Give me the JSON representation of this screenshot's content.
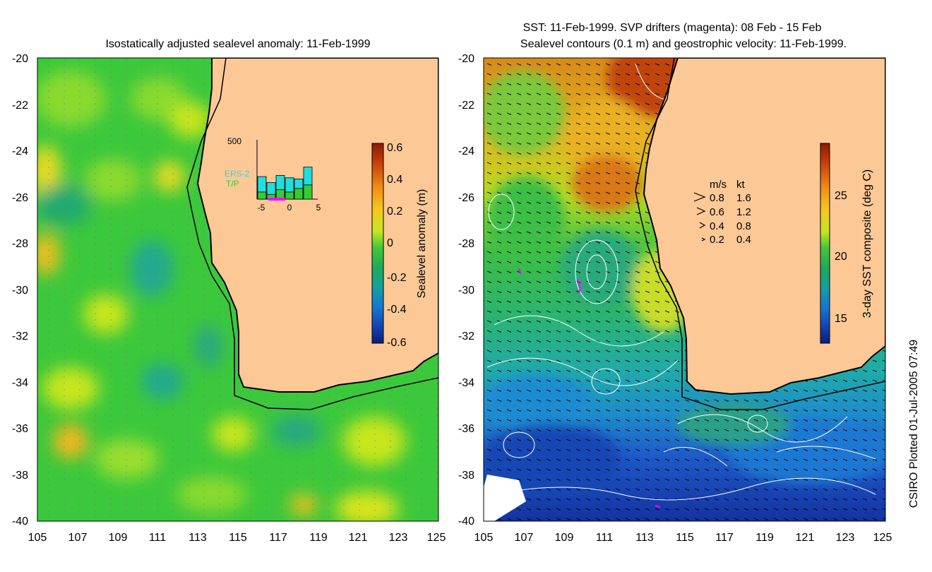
{
  "left_panel": {
    "title": "Isostatically adjusted sealevel anomaly: 11-Feb-1999",
    "colorbar": {
      "label": "Sealevel anomaly (m)",
      "ticks": [
        "0.6",
        "0.4",
        "0.2",
        "0",
        "-0.2",
        "-0.4",
        "-0.6"
      ],
      "colors": [
        "#8b1a00",
        "#c8400a",
        "#f08c14",
        "#f5c81e",
        "#c8e61e",
        "#46c83c",
        "#1eaa5a",
        "#14a0a0",
        "#1478d2",
        "#1446b4",
        "#0a1e78"
      ]
    },
    "inset": {
      "ymax_label": "500",
      "legend": [
        "ERS-2",
        "T/P"
      ],
      "legend_colors": [
        "#22dddd",
        "#33cc33"
      ],
      "xticks": [
        "-5",
        "0",
        "5"
      ],
      "ers2_counts": [
        190,
        140,
        200,
        180,
        170,
        270
      ],
      "tp_counts": [
        60,
        40,
        80,
        60,
        90,
        120
      ]
    }
  },
  "right_panel": {
    "title_line1": "SST: 11-Feb-1999. SVP drifters (magenta): 08 Feb - 15 Feb",
    "title_line2": "Sealevel contours (0.1 m) and geostrophic velocity: 11-Feb-1999.",
    "colorbar": {
      "label": "3-day SST composite (deg C)",
      "ticks": [
        "25",
        "20",
        "15"
      ],
      "colors": [
        "#8b1a00",
        "#c8400a",
        "#f08c14",
        "#f5c81e",
        "#c8e61e",
        "#46c83c",
        "#1eaa5a",
        "#14a0a0",
        "#1478d2",
        "#1446b4",
        "#0a1e78"
      ]
    },
    "velocity_key": {
      "header_ms": "m/s",
      "header_kt": "kt",
      "rows": [
        {
          "ms": "0.8",
          "kt": "1.6"
        },
        {
          "ms": "0.6",
          "kt": "1.2"
        },
        {
          "ms": "0.4",
          "kt": "0.8"
        },
        {
          "ms": "0.2",
          "kt": "0.4"
        }
      ]
    }
  },
  "axes": {
    "lat_labels": [
      "-20",
      "-22",
      "-24",
      "-26",
      "-28",
      "-30",
      "-32",
      "-34",
      "-36",
      "-38",
      "-40"
    ],
    "lon_labels": [
      "105",
      "107",
      "109",
      "111",
      "113",
      "115",
      "117",
      "119",
      "121",
      "123",
      "125"
    ]
  },
  "colors": {
    "land": "#fcc896",
    "ocean_green": "#3cc83c",
    "coast": "#000000",
    "sst_warm": "#d86a10",
    "sst_cool": "#1e78d2"
  },
  "credit": "CSIRO Plotted 01-Jul-2005 07:49"
}
